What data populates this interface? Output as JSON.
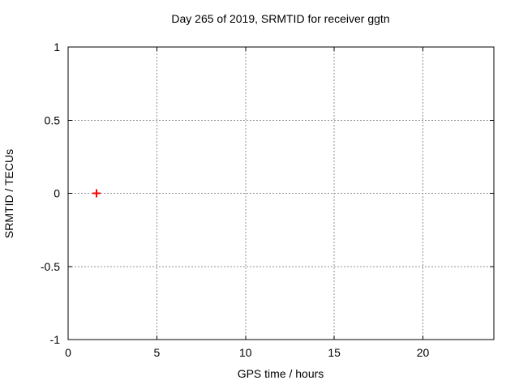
{
  "chart_data": {
    "type": "scatter",
    "title": "Day 265 of 2019, SRMTID for receiver ggtn",
    "xlabel": "GPS time / hours",
    "ylabel": "SRMTID / TECUs",
    "xlim": [
      0,
      24
    ],
    "ylim": [
      -1,
      1
    ],
    "xticks": [
      0,
      5,
      10,
      15,
      20
    ],
    "yticks": [
      -1,
      -0.5,
      0,
      0.5,
      1
    ],
    "grid": true,
    "legend": "none",
    "series": [
      {
        "marker": "plus",
        "color": "#ff0000",
        "points": [
          [
            1.6,
            0.0
          ]
        ]
      }
    ]
  },
  "colors": {
    "background": "#ffffff",
    "border": "#000000",
    "grid": "#909090",
    "text": "#000000"
  }
}
